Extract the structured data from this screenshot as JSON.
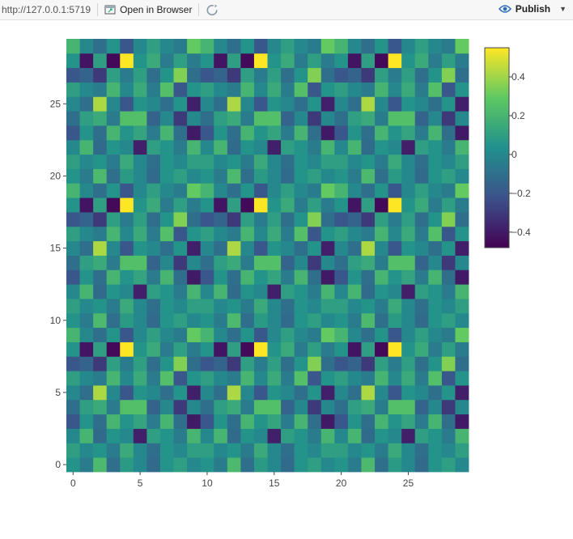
{
  "toolbar": {
    "url": "http://127.0.0.1:5719",
    "open_label": "Open in Browser",
    "publish_label": "Publish",
    "icons": [
      "open-in-browser-icon",
      "refresh-icon",
      "publish-icon",
      "chevron-down-icon"
    ]
  },
  "chart_data": {
    "type": "heatmap",
    "colorscale": "viridis",
    "colors": [
      "#440154",
      "#3b528b",
      "#21908d",
      "#5dc962",
      "#fde725"
    ],
    "zlim": [
      -0.48,
      0.55
    ],
    "colorbar_ticks": [
      "0.4",
      "0.2",
      "0",
      "−0.2",
      "−0.4"
    ],
    "colorbar_tick_values": [
      0.4,
      0.2,
      0,
      -0.2,
      -0.4
    ],
    "x_ticks": [
      "0",
      "5",
      "10",
      "15",
      "20",
      "25"
    ],
    "y_ticks": [
      "0",
      "5",
      "10",
      "15",
      "20",
      "25"
    ],
    "tick_values": [
      0,
      5,
      10,
      15,
      20,
      25
    ],
    "xlim": [
      -0.5,
      29.5
    ],
    "ylim": [
      -0.5,
      29.5
    ],
    "period": 10,
    "z_period_rows_bottom_to_top": [
      [
        0.05,
        -0.05,
        0.22,
        -0.1,
        0.08,
        0.0,
        -0.12,
        0.05,
        0.1,
        0.0
      ],
      [
        0.1,
        0.0,
        0.05,
        -0.05,
        0.15,
        0.0,
        -0.1,
        0.05,
        0.0,
        0.1
      ],
      [
        0.0,
        0.2,
        -0.12,
        0.05,
        0.0,
        -0.38,
        0.1,
        0.05,
        -0.05,
        0.2
      ],
      [
        -0.2,
        0.05,
        -0.1,
        0.2,
        0.05,
        0.12,
        -0.05,
        0.2,
        -0.1,
        -0.4
      ],
      [
        -0.1,
        0.1,
        0.15,
        -0.05,
        0.25,
        0.25,
        -0.15,
        0.0,
        -0.3,
        0.0
      ],
      [
        0.0,
        -0.1,
        0.42,
        0.0,
        -0.2,
        0.05,
        0.0,
        -0.1,
        0.05,
        -0.38
      ],
      [
        0.1,
        0.0,
        -0.05,
        0.2,
        0.0,
        0.15,
        -0.05,
        0.25,
        -0.2,
        0.05
      ],
      [
        -0.2,
        -0.15,
        -0.3,
        0.1,
        -0.05,
        0.1,
        -0.1,
        0.05,
        0.35,
        -0.1
      ],
      [
        0.05,
        -0.42,
        0.1,
        -0.45,
        0.55,
        0.05,
        0.15,
        -0.05,
        0.1,
        -0.05
      ],
      [
        0.2,
        0.0,
        -0.1,
        0.05,
        -0.2,
        0.0,
        0.1,
        0.0,
        -0.05,
        0.3
      ]
    ]
  }
}
